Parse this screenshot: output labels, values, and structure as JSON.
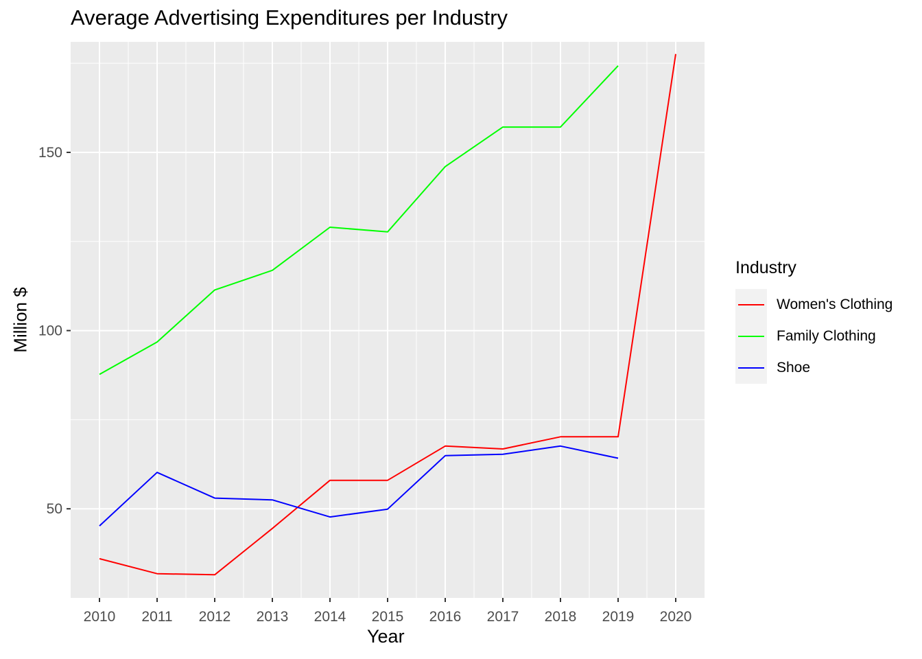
{
  "chart_data": {
    "type": "line",
    "title": "Average Advertising Expenditures per Industry",
    "xlabel": "Year",
    "ylabel": "Million $",
    "x": [
      2010,
      2011,
      2012,
      2013,
      2014,
      2015,
      2016,
      2017,
      2018,
      2019,
      2020
    ],
    "xlim": [
      2009.5,
      2020.5
    ],
    "ylim": [
      25,
      181
    ],
    "yticks": [
      50,
      100,
      150
    ],
    "grid": true,
    "legend": {
      "title": "Industry",
      "position": "right"
    },
    "series": [
      {
        "name": "Women's Clothing",
        "color": "#ff0000",
        "values": [
          36,
          31.8,
          31.5,
          44.5,
          58,
          58,
          67.6,
          66.8,
          70.2,
          70.2,
          177.6
        ]
      },
      {
        "name": "Family Clothing",
        "color": "#00ff00",
        "values": [
          87.7,
          96.8,
          111.4,
          116.9,
          129,
          127.7,
          146,
          157.1,
          157.1,
          174.3,
          null
        ]
      },
      {
        "name": "Shoe",
        "color": "#0000ff",
        "values": [
          45.2,
          60.2,
          53,
          52.5,
          47.7,
          49.9,
          64.9,
          65.3,
          67.6,
          64.2,
          null
        ]
      }
    ]
  }
}
